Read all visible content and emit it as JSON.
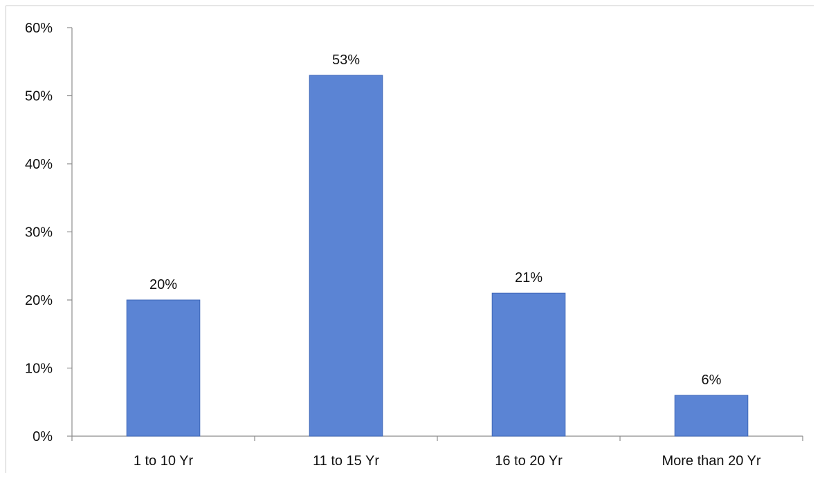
{
  "chart_data": {
    "type": "bar",
    "categories": [
      "1 to 10 Yr",
      "11 to 15 Yr",
      "16 to 20 Yr",
      "More than 20 Yr"
    ],
    "values": [
      20,
      53,
      21,
      6
    ],
    "data_labels": [
      "20%",
      "53%",
      "21%",
      "6%"
    ],
    "ylim": [
      0,
      60
    ],
    "y_ticks": [
      0,
      10,
      20,
      30,
      40,
      50,
      60
    ],
    "y_tick_labels": [
      "0%",
      "10%",
      "20%",
      "30%",
      "40%",
      "50%",
      "60%"
    ],
    "grid": false,
    "bar_color": "#5b84d4",
    "bar_edge_color": "#3f67b8"
  }
}
